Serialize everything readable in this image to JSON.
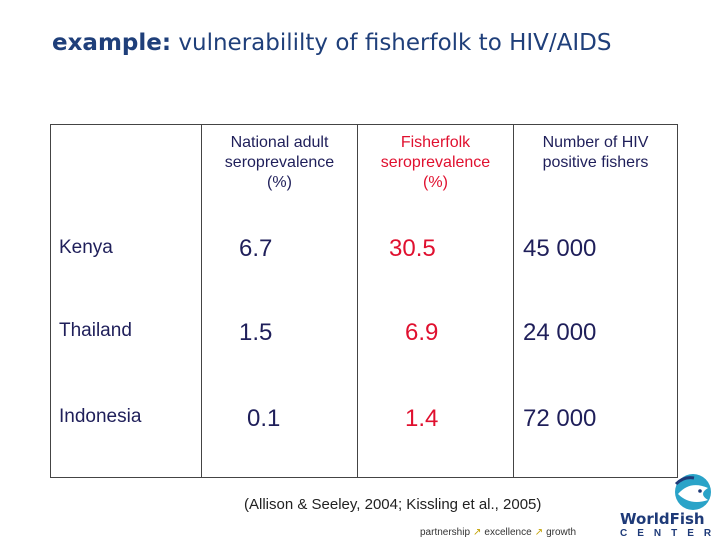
{
  "title": {
    "bold": "example:",
    "rest": " vulnerabililty of fisherfolk to HIV/AIDS"
  },
  "table": {
    "headers": [
      {
        "line1": "National adult",
        "line2": "seroprevalence",
        "line3": "(%)"
      },
      {
        "line1": "Fisherfolk",
        "line2": "seroprevalence",
        "line3": "(%)"
      },
      {
        "line1": "Number of HIV",
        "line2": "positive fishers",
        "line3": ""
      }
    ],
    "rows": [
      {
        "country": "Kenya",
        "national": "6.7",
        "fisherfolk": "30.5",
        "fishers": "45 000"
      },
      {
        "country": "Thailand",
        "national": "1.5",
        "fisherfolk": "6.9",
        "fishers": "24 000"
      },
      {
        "country": "Indonesia",
        "national": "0.1",
        "fisherfolk": "1.4",
        "fishers": "72 000"
      }
    ]
  },
  "source": "(Allison & Seeley, 2004; Kissling et al., 2005)",
  "tagline": {
    "w1": "partnership",
    "w2": "excellence",
    "w3": "growth"
  },
  "logo": {
    "title": "WorldFish",
    "sub": "CENTER",
    "accent": "#2aa3c8",
    "brand": "#1e3a78"
  },
  "colors": {
    "highlight": "#e0102f",
    "text": "#1f1f5a",
    "title": "#1f3f7a"
  }
}
